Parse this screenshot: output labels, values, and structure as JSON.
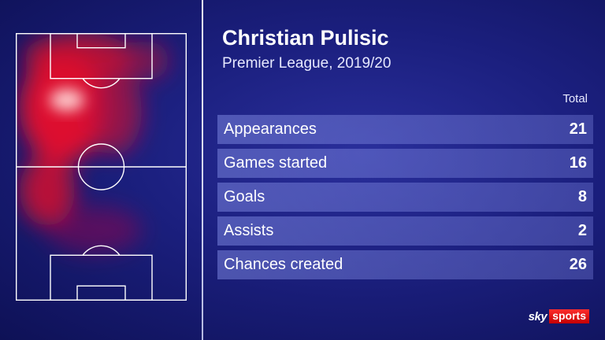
{
  "player": {
    "name": "Christian Pulisic",
    "competition": "Premier League, 2019/20"
  },
  "table": {
    "column_header": "Total",
    "rows": [
      {
        "label": "Appearances",
        "value": "21"
      },
      {
        "label": "Games started",
        "value": "16"
      },
      {
        "label": "Goals",
        "value": "8"
      },
      {
        "label": "Assists",
        "value": "2"
      },
      {
        "label": "Chances created",
        "value": "26"
      }
    ]
  },
  "brand": {
    "sky": "sky",
    "sports": "sports"
  },
  "colors": {
    "background": "#1b1f7e",
    "heat": "#ff1a1a",
    "logo_red": "#e10000"
  }
}
